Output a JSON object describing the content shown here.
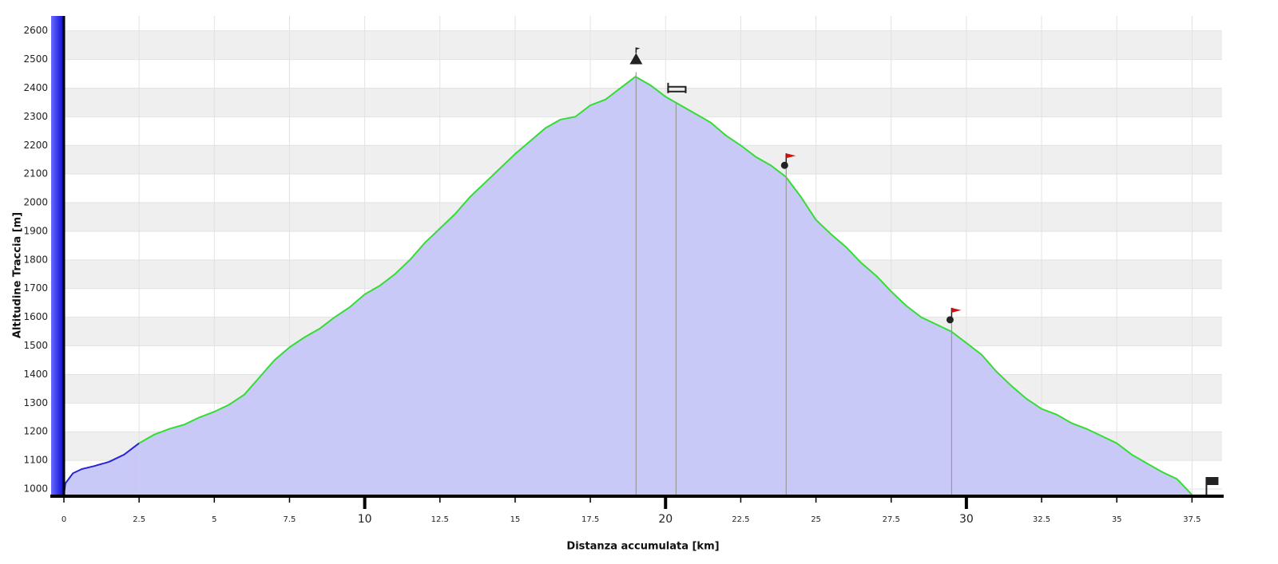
{
  "chart_data": {
    "type": "area-line",
    "xlabel": "Distanza accumulata [km]",
    "ylabel": "Altitudine Traccia [m]",
    "xlim": [
      0,
      38.5
    ],
    "ylim": [
      975,
      2652
    ],
    "xticks": [
      0,
      2.5,
      5,
      7.5,
      10,
      12.5,
      15,
      17.5,
      20,
      22.5,
      25,
      27.5,
      30,
      32.5,
      35,
      37.5
    ],
    "yticks": [
      1000,
      1100,
      1200,
      1300,
      1400,
      1500,
      1600,
      1700,
      1800,
      1900,
      2000,
      2100,
      2200,
      2300,
      2400,
      2500,
      2600
    ],
    "grid": true,
    "fill_color": "#c9c9f7",
    "series": [
      {
        "color": "#2424d6",
        "x": [
          0,
          0.05,
          0.3,
          0.6,
          1,
          1.5,
          2,
          2.5
        ],
        "values": [
          980,
          1020,
          1055,
          1070,
          1080,
          1095,
          1120,
          1160
        ]
      },
      {
        "color": "#33dd33",
        "x": [
          2.5,
          3,
          3.5,
          4,
          4.5,
          5,
          5.5,
          6,
          6.5,
          7,
          7.5,
          8,
          8.5,
          9,
          9.5,
          10,
          10.5,
          11,
          11.5,
          12,
          12.5,
          13,
          13.5,
          14,
          14.5,
          15,
          15.5,
          16,
          16.5,
          17,
          17.5,
          18,
          18.5,
          19,
          19.5,
          20,
          20.5,
          21,
          21.5,
          22,
          22.5,
          23,
          23.5,
          24,
          24.5,
          25,
          25.5,
          26,
          26.5,
          27,
          27.5,
          28,
          28.5,
          29,
          29.5,
          30,
          30.5,
          31,
          31.5,
          32,
          32.5,
          33,
          33.5,
          34,
          34.5,
          35,
          35.5,
          36,
          36.5,
          37,
          37.5
        ],
        "values": [
          1160,
          1190,
          1210,
          1225,
          1250,
          1270,
          1295,
          1330,
          1390,
          1450,
          1495,
          1530,
          1560,
          1600,
          1635,
          1680,
          1710,
          1750,
          1800,
          1860,
          1910,
          1960,
          2020,
          2070,
          2120,
          2170,
          2215,
          2260,
          2290,
          2300,
          2340,
          2360,
          2400,
          2440,
          2410,
          2370,
          2340,
          2310,
          2280,
          2235,
          2200,
          2160,
          2130,
          2090,
          2020,
          1940,
          1890,
          1845,
          1790,
          1745,
          1690,
          1640,
          1600,
          1575,
          1550,
          1510,
          1470,
          1410,
          1360,
          1315,
          1280,
          1260,
          1230,
          1210,
          1185,
          1160,
          1120,
          1090,
          1060,
          1035,
          980
        ]
      }
    ],
    "markers": [
      {
        "x": 19.02,
        "kind": "summit"
      },
      {
        "x": 20.35,
        "kind": "bed"
      },
      {
        "x": 24.01,
        "kind": "flag"
      },
      {
        "x": 29.51,
        "kind": "flag"
      },
      {
        "x": 37.98,
        "kind": "finish"
      }
    ]
  }
}
